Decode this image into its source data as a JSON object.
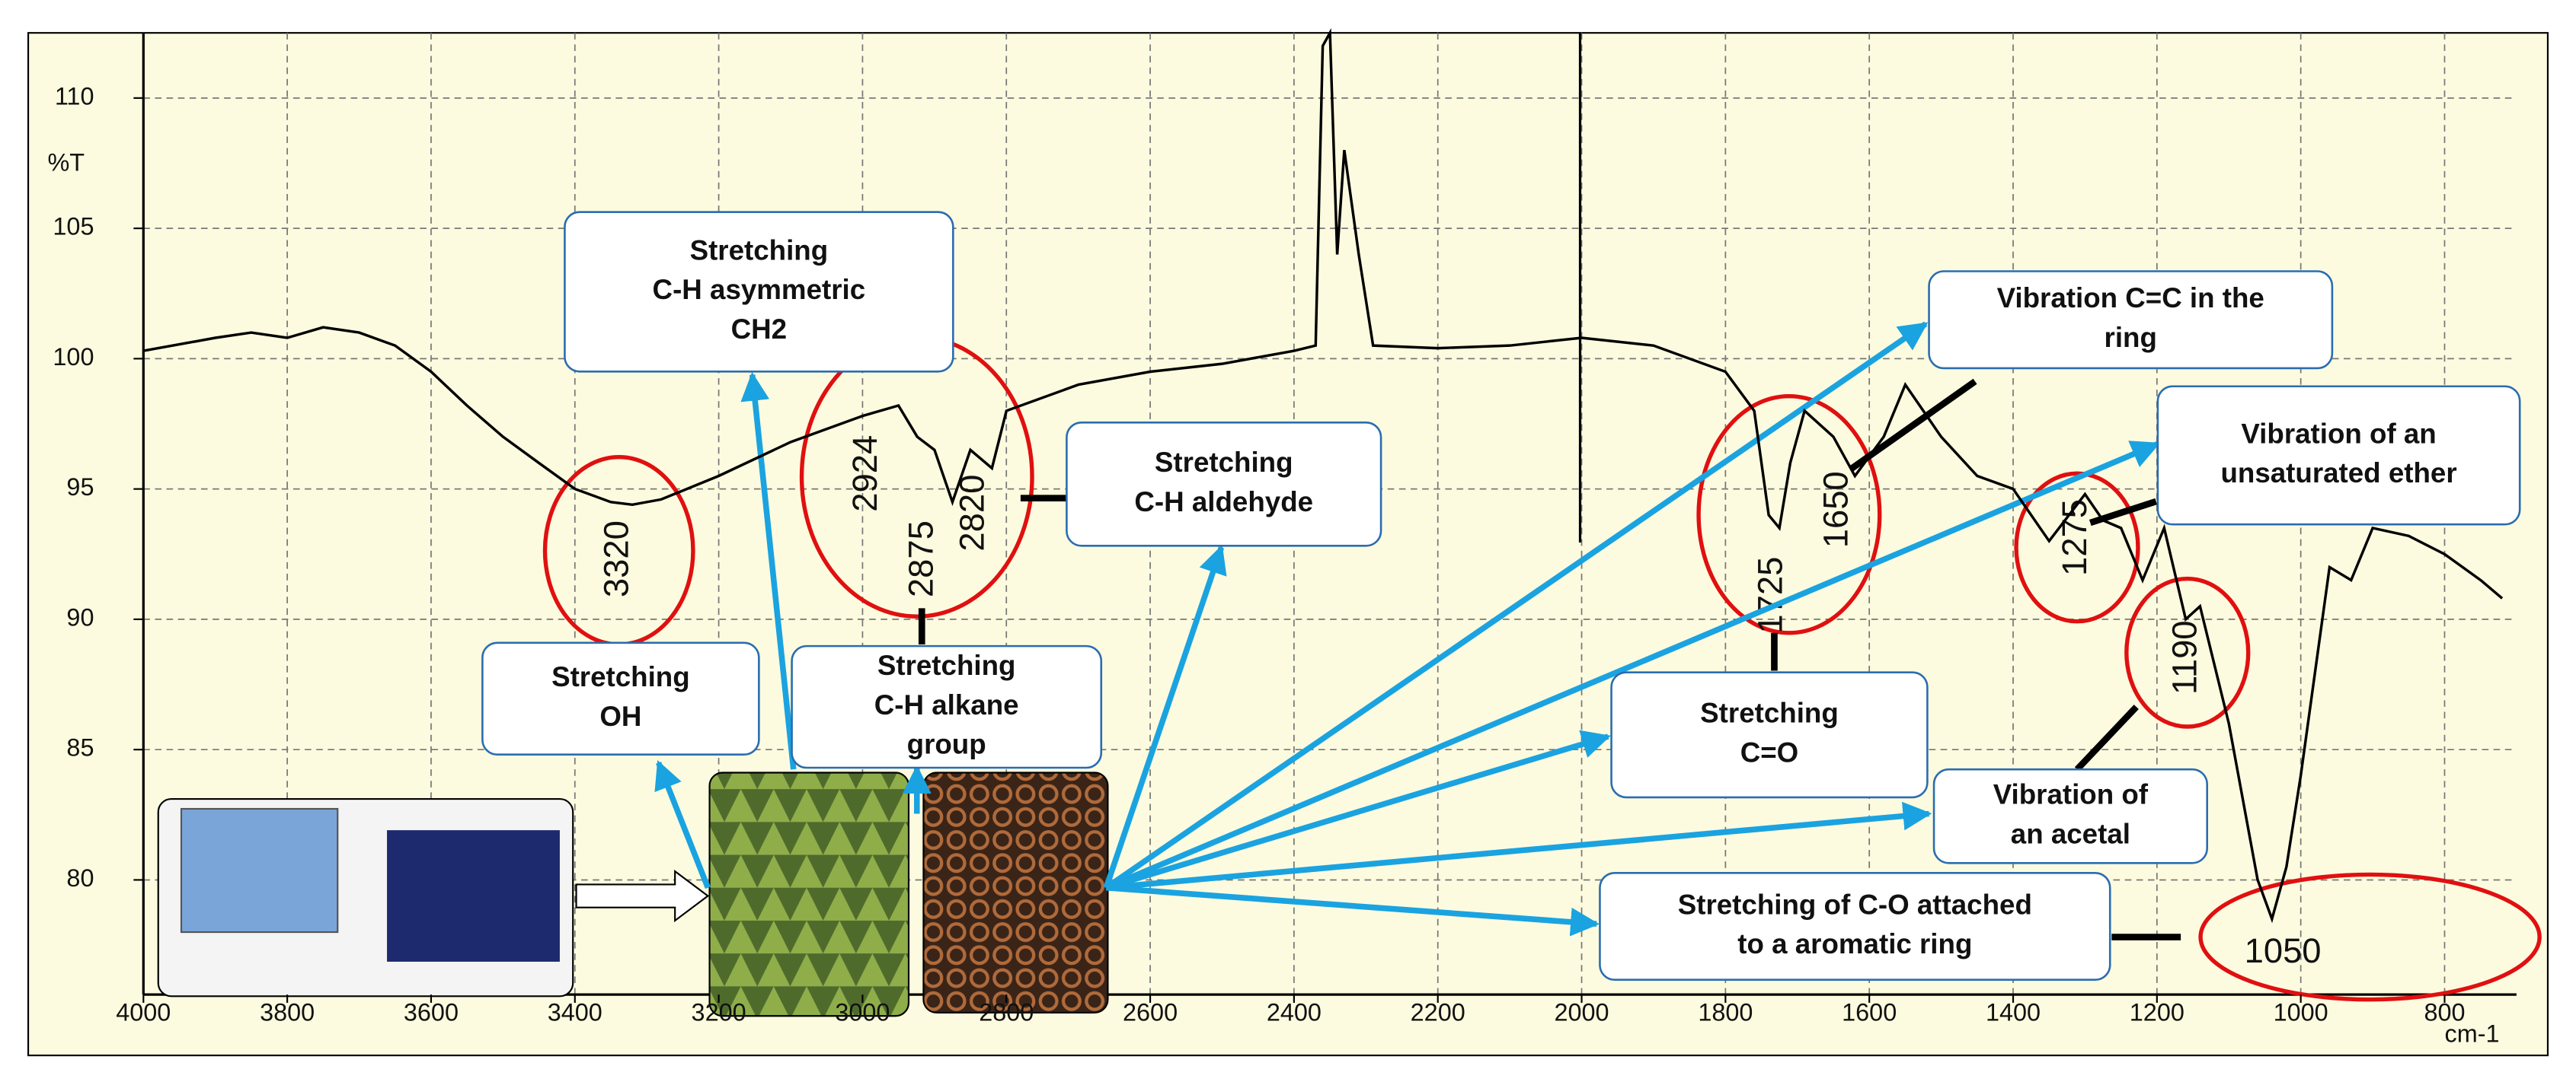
{
  "chart_data": {
    "type": "line",
    "x_label": "cm-1",
    "y_label": "%T",
    "x": [
      4000,
      3900,
      3850,
      3800,
      3750,
      3700,
      3650,
      3600,
      3550,
      3500,
      3450,
      3400,
      3350,
      3320,
      3280,
      3200,
      3100,
      3000,
      2950,
      2924,
      2900,
      2875,
      2850,
      2820,
      2800,
      2700,
      2600,
      2500,
      2400,
      2370,
      2360,
      2350,
      2340,
      2330,
      2310,
      2290,
      2200,
      2100,
      2000,
      1900,
      1800,
      1760,
      1740,
      1725,
      1710,
      1690,
      1650,
      1620,
      1580,
      1550,
      1500,
      1450,
      1400,
      1350,
      1300,
      1275,
      1250,
      1220,
      1190,
      1160,
      1140,
      1100,
      1060,
      1040,
      1020,
      1000,
      960,
      930,
      900,
      850,
      800,
      750,
      720
    ],
    "values": [
      100.3,
      100.8,
      101.0,
      100.8,
      101.2,
      101.0,
      100.5,
      99.5,
      98.2,
      97.0,
      96.0,
      95.0,
      94.5,
      94.4,
      94.6,
      95.5,
      96.8,
      97.8,
      98.2,
      97.0,
      96.5,
      94.5,
      96.5,
      95.8,
      98.0,
      99.0,
      99.5,
      99.8,
      100.3,
      100.5,
      112.0,
      112.5,
      104.0,
      108.0,
      104.0,
      100.5,
      100.4,
      100.5,
      100.8,
      100.5,
      99.5,
      98.0,
      94.0,
      93.5,
      96.0,
      98.0,
      97.0,
      95.5,
      97.0,
      99.0,
      97.0,
      95.5,
      95.0,
      93.0,
      94.8,
      93.8,
      93.5,
      91.5,
      93.5,
      90.0,
      90.5,
      86.0,
      80.0,
      78.5,
      80.5,
      84.0,
      92.0,
      91.5,
      93.5,
      93.2,
      92.5,
      91.5,
      90.8
    ],
    "color": "#000000",
    "xlim": [
      4000,
      700
    ],
    "ylim": [
      75.6,
      112.5
    ],
    "xticks": [
      4000,
      3800,
      3600,
      3400,
      3200,
      3000,
      2800,
      2600,
      2400,
      2200,
      2000,
      1800,
      1600,
      1400,
      1200,
      1000,
      800
    ],
    "yticks": [
      80,
      85,
      90,
      95,
      100,
      105,
      110
    ],
    "grid": true,
    "peaks": [
      3320,
      2924,
      2875,
      2820,
      1725,
      1650,
      1275,
      1190,
      1050
    ],
    "annotations": [
      {
        "lines": [
          "Stretching",
          "C-H asymmetric",
          "CH2"
        ]
      },
      {
        "lines": [
          "Stretching",
          "C-H aldehyde"
        ]
      },
      {
        "lines": [
          "Stretching",
          "OH"
        ]
      },
      {
        "lines": [
          "Stretching",
          "C-H alkane",
          "group"
        ]
      },
      {
        "lines": [
          "Vibration C=C in the",
          "ring"
        ]
      },
      {
        "lines": [
          "Vibration of an",
          "unsaturated ether"
        ]
      },
      {
        "lines": [
          "Stretching",
          "C=O"
        ]
      },
      {
        "lines": [
          "Vibration of",
          "an acetal"
        ]
      },
      {
        "lines": [
          "Stretching of C-O attached",
          "to a aromatic ring"
        ]
      }
    ]
  }
}
